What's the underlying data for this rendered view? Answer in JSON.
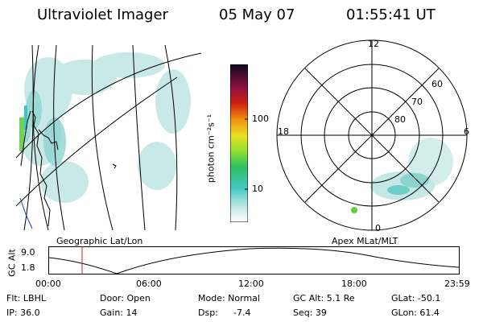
{
  "header": {
    "title": "Ultraviolet Imager",
    "date": "05 May 07",
    "time": "01:55:41 UT"
  },
  "colorbar": {
    "label": "photon cm⁻²s⁻¹",
    "ticks": [
      "100",
      "10"
    ]
  },
  "polar_plot": {
    "mlt_labels": [
      "12",
      "18",
      "6",
      "0"
    ],
    "lat_labels": [
      "60",
      "70",
      "80"
    ]
  },
  "panel_labels": {
    "left": "Geographic Lat/Lon",
    "right": "Apex MLat/MLT"
  },
  "timeline": {
    "ylabel": "GC Alt",
    "yticks": [
      "9.0",
      "1.8"
    ],
    "xticks": [
      "00:00",
      "06:00",
      "12:00",
      "18:00",
      "23:59"
    ]
  },
  "info": {
    "row1": {
      "filter": "Flt: LBHL",
      "door": "Door: Open",
      "mode": "Mode: Normal",
      "gc_alt": "GC Alt: 5.1 Re",
      "glat": "GLat: -50.1"
    },
    "row2": {
      "ip": "IP: 36.0",
      "gain": "Gain: 14",
      "dsp_label": "Dsp:",
      "dsp_value": "-7.4",
      "seq": "Seq: 39",
      "glon": "GLon:  61.4"
    }
  },
  "colors": {
    "aurora": "#9fd8d6",
    "aurora_bright": "#40c8c0",
    "aurora_green": "#60d040",
    "marker_line": "#d02020"
  }
}
